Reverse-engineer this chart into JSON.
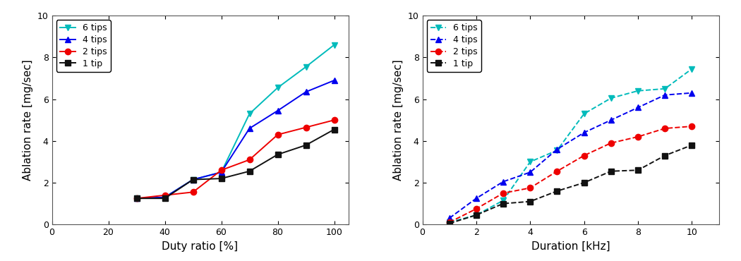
{
  "plot1": {
    "xlabel": "Duty ratio [%]",
    "ylabel": "Ablation rate [mg/sec]",
    "xlim": [
      0,
      105
    ],
    "ylim": [
      0,
      10
    ],
    "xticks": [
      0,
      20,
      40,
      60,
      80,
      100
    ],
    "yticks": [
      0,
      2,
      4,
      6,
      8,
      10
    ],
    "series": [
      {
        "label": "6 tips",
        "color": "#00BBBB",
        "marker": "v",
        "linestyle": "-",
        "x": [
          30,
          40,
          50,
          60,
          70,
          80,
          90,
          100
        ],
        "y": [
          1.25,
          1.3,
          2.15,
          2.5,
          5.3,
          6.55,
          7.55,
          8.6
        ]
      },
      {
        "label": "4 tips",
        "color": "#0000EE",
        "marker": "^",
        "linestyle": "-",
        "x": [
          30,
          40,
          50,
          60,
          70,
          80,
          90,
          100
        ],
        "y": [
          1.25,
          1.3,
          2.15,
          2.5,
          4.6,
          5.45,
          6.35,
          6.9
        ]
      },
      {
        "label": "2 tips",
        "color": "#EE0000",
        "marker": "o",
        "linestyle": "-",
        "x": [
          30,
          40,
          50,
          60,
          70,
          80,
          90,
          100
        ],
        "y": [
          1.25,
          1.4,
          1.55,
          2.6,
          3.1,
          4.3,
          4.65,
          5.0
        ]
      },
      {
        "label": "1 tip",
        "color": "#111111",
        "marker": "s",
        "linestyle": "-",
        "x": [
          30,
          40,
          50,
          60,
          70,
          80,
          90,
          100
        ],
        "y": [
          1.25,
          1.25,
          2.15,
          2.2,
          2.55,
          3.35,
          3.8,
          4.55
        ]
      }
    ]
  },
  "plot2": {
    "xlabel": "Duration [kHz]",
    "ylabel": "Ablation rate [mg/sec]",
    "xlim": [
      0.5,
      11
    ],
    "ylim": [
      0,
      10
    ],
    "xticks": [
      0,
      2,
      4,
      6,
      8,
      10
    ],
    "yticks": [
      0,
      2,
      4,
      6,
      8,
      10
    ],
    "series": [
      {
        "label": "6 tips",
        "color": "#00BBBB",
        "marker": "v",
        "linestyle": "--",
        "x": [
          1,
          2,
          3,
          4,
          5,
          6,
          7,
          8,
          9,
          10
        ],
        "y": [
          0.1,
          0.45,
          1.15,
          3.0,
          3.55,
          5.3,
          6.05,
          6.4,
          6.5,
          7.45
        ]
      },
      {
        "label": "4 tips",
        "color": "#0000EE",
        "marker": "^",
        "linestyle": "--",
        "x": [
          1,
          2,
          3,
          4,
          5,
          6,
          7,
          8,
          9,
          10
        ],
        "y": [
          0.3,
          1.25,
          2.05,
          2.5,
          3.6,
          4.4,
          5.0,
          5.6,
          6.2,
          6.3
        ]
      },
      {
        "label": "2 tips",
        "color": "#EE0000",
        "marker": "o",
        "linestyle": "--",
        "x": [
          1,
          2,
          3,
          4,
          5,
          6,
          7,
          8,
          9,
          10
        ],
        "y": [
          0.1,
          0.75,
          1.5,
          1.75,
          2.55,
          3.3,
          3.9,
          4.2,
          4.6,
          4.7
        ]
      },
      {
        "label": "1 tip",
        "color": "#111111",
        "marker": "s",
        "linestyle": "--",
        "x": [
          1,
          2,
          3,
          4,
          5,
          6,
          7,
          8,
          9,
          10
        ],
        "y": [
          0.05,
          0.45,
          1.0,
          1.1,
          1.6,
          2.0,
          2.55,
          2.6,
          3.3,
          3.8
        ]
      }
    ]
  },
  "fig_background": "#ffffff",
  "ax_background": "#ffffff",
  "legend_fontsize": 9,
  "axis_fontsize": 11,
  "tick_fontsize": 9,
  "linewidth": 1.4,
  "markersize": 6
}
